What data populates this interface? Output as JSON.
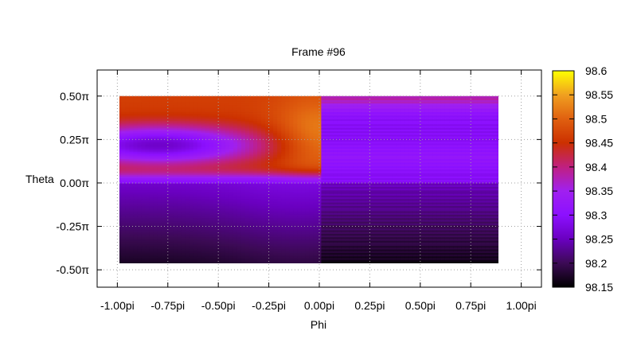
{
  "chart_data": {
    "type": "heatmap",
    "title": "Frame #96",
    "xlabel": "Phi",
    "ylabel": "Theta",
    "xlim": [
      -1.1,
      1.1
    ],
    "ylim": [
      -0.6,
      0.65
    ],
    "x_ticks": [
      {
        "v": -1.0,
        "label": "-1.00pi"
      },
      {
        "v": -0.75,
        "label": "-0.75pi"
      },
      {
        "v": -0.5,
        "label": "-0.50pi"
      },
      {
        "v": -0.25,
        "label": "-0.25pi"
      },
      {
        "v": 0.0,
        "label": "0.00pi"
      },
      {
        "v": 0.25,
        "label": "0.25pi"
      },
      {
        "v": 0.5,
        "label": "0.50pi"
      },
      {
        "v": 0.75,
        "label": "0.75pi"
      },
      {
        "v": 1.0,
        "label": "1.00pi"
      }
    ],
    "y_ticks": [
      {
        "v": 0.5,
        "label": "0.50π"
      },
      {
        "v": 0.25,
        "label": "0.25π"
      },
      {
        "v": 0.0,
        "label": "0.00π"
      },
      {
        "v": -0.25,
        "label": "-0.25π"
      },
      {
        "v": -0.5,
        "label": "-0.50π"
      }
    ],
    "data_extent": {
      "phi": [
        -1.0,
        0.9
      ],
      "theta": [
        -0.5,
        0.5
      ]
    },
    "colorbar": {
      "range": [
        98.15,
        98.6
      ],
      "ticks": [
        "98.6",
        "98.55",
        "98.5",
        "98.45",
        "98.4",
        "98.35",
        "98.3",
        "98.25",
        "98.2",
        "98.15"
      ],
      "palette": [
        "#000000",
        "#3c0a55",
        "#6a00c0",
        "#8c10ff",
        "#a020f0",
        "#c02080",
        "#cc3000",
        "#e06010",
        "#f0a020",
        "#ffff00"
      ]
    },
    "grid": true
  }
}
